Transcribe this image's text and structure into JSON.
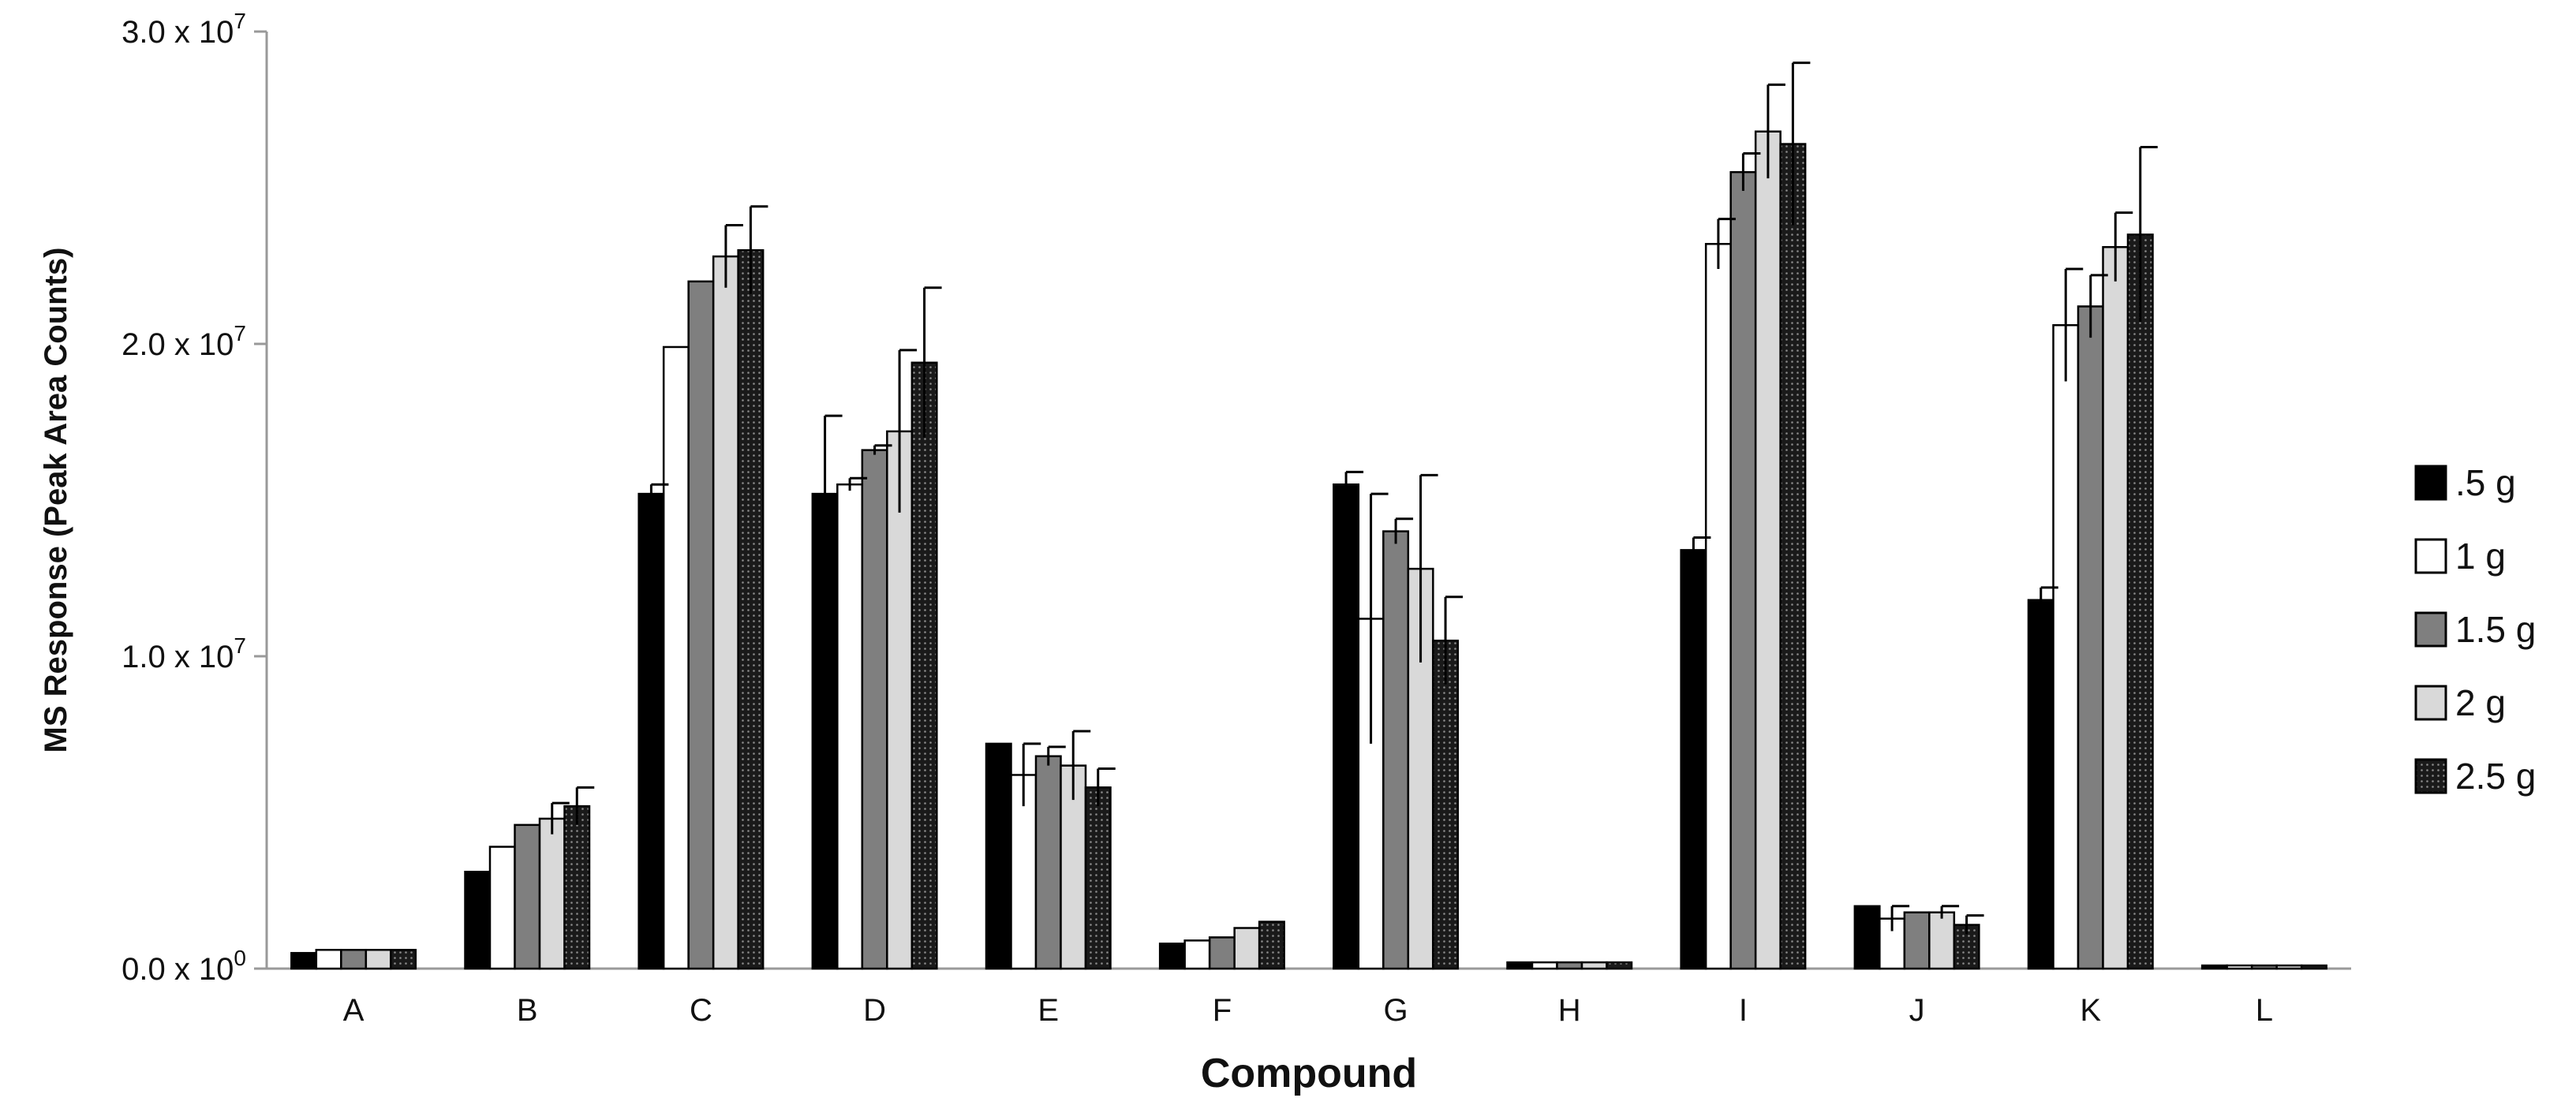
{
  "chart_data": {
    "type": "bar",
    "xlabel": "Compound",
    "ylabel": "MS Response (Peak Area Counts)",
    "ylim": [
      0,
      30000000
    ],
    "yticks": [
      {
        "value": 0,
        "mantissa": "0.0",
        "exponent": "0"
      },
      {
        "value": 10000000,
        "mantissa": "1.0",
        "exponent": "7"
      },
      {
        "value": 20000000,
        "mantissa": "2.0",
        "exponent": "7"
      },
      {
        "value": 30000000,
        "mantissa": "3.0",
        "exponent": "7"
      }
    ],
    "grid": false,
    "legend_position": "right",
    "categories": [
      "A",
      "B",
      "C",
      "D",
      "E",
      "F",
      "G",
      "H",
      "I",
      "J",
      "K",
      "L"
    ],
    "series": [
      {
        "name": ".5 g",
        "color": "#000000",
        "pattern": "solid",
        "values": [
          500000,
          3100000,
          15200000,
          15200000,
          7200000,
          800000,
          15500000,
          200000,
          13400000,
          2000000,
          11800000,
          100000
        ],
        "errors": [
          0,
          0,
          300000,
          2500000,
          0,
          0,
          400000,
          0,
          400000,
          0,
          400000,
          0
        ]
      },
      {
        "name": "1 g",
        "color": "#ffffff",
        "pattern": "solid",
        "values": [
          600000,
          3900000,
          19900000,
          15500000,
          6200000,
          900000,
          11200000,
          200000,
          23200000,
          1600000,
          20600000,
          100000
        ],
        "errors": [
          0,
          0,
          0,
          200000,
          1000000,
          0,
          4000000,
          0,
          800000,
          400000,
          1800000,
          0
        ]
      },
      {
        "name": "1.5 g",
        "color": "#7f7f7f",
        "pattern": "solid",
        "values": [
          600000,
          4600000,
          22000000,
          16600000,
          6800000,
          1000000,
          14000000,
          200000,
          25500000,
          1800000,
          21200000,
          100000
        ],
        "errors": [
          0,
          0,
          0,
          150000,
          300000,
          0,
          400000,
          0,
          600000,
          0,
          1000000,
          0
        ]
      },
      {
        "name": "2 g",
        "color": "#d9d9d9",
        "pattern": "solid",
        "values": [
          600000,
          4800000,
          22800000,
          17200000,
          6500000,
          1300000,
          12800000,
          200000,
          26800000,
          1800000,
          23100000,
          100000
        ],
        "errors": [
          0,
          500000,
          1000000,
          2600000,
          1100000,
          0,
          3000000,
          0,
          1500000,
          200000,
          1100000,
          0
        ]
      },
      {
        "name": "2.5 g",
        "color": "#1a1a1a",
        "pattern": "dotted",
        "values": [
          600000,
          5200000,
          23000000,
          19400000,
          5800000,
          1500000,
          10500000,
          200000,
          26400000,
          1400000,
          23500000,
          100000
        ],
        "errors": [
          0,
          600000,
          1400000,
          2400000,
          600000,
          0,
          1400000,
          0,
          2600000,
          300000,
          2800000,
          0
        ]
      }
    ]
  }
}
